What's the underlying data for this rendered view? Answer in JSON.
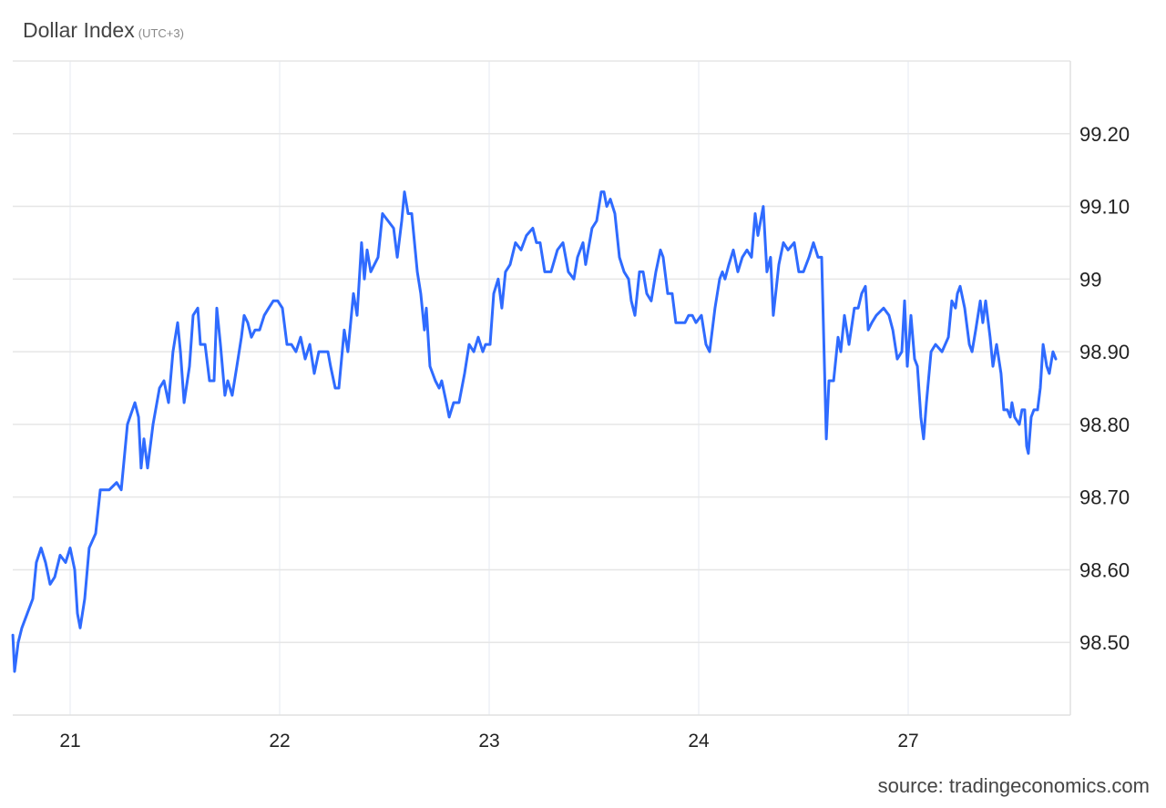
{
  "chart_data": {
    "type": "line",
    "title": "Dollar Index",
    "subtitle": "(UTC+3)",
    "source": "source: tradingeconomics.com",
    "line_color": "#2f6bff",
    "grid": true,
    "y_axis_position": "right",
    "ylim": [
      98.4,
      99.3
    ],
    "yticks": [
      {
        "value": 99.2,
        "label": "99.20"
      },
      {
        "value": 99.1,
        "label": "99.10"
      },
      {
        "value": 99.0,
        "label": "99"
      },
      {
        "value": 98.9,
        "label": "98.90"
      },
      {
        "value": 98.8,
        "label": "98.80"
      },
      {
        "value": 98.7,
        "label": "98.70"
      },
      {
        "value": 98.6,
        "label": "98.60"
      },
      {
        "value": 98.5,
        "label": "98.50"
      }
    ],
    "xticks": [
      "21",
      "22",
      "23",
      "24",
      "27"
    ],
    "xlim": [
      "20 17:26",
      "27 18:34"
    ],
    "x": [
      "20 17:26",
      "20 17:38",
      "20 18:03",
      "20 18:28",
      "20 19:06",
      "20 19:43",
      "20 20:08",
      "20 20:40",
      "20 21:11",
      "20 21:42",
      "20 22:14",
      "20 22:51",
      "20 23:29",
      "21 00:00",
      "21 00:31",
      "21 00:50",
      "21 01:09",
      "21 01:40",
      "21 02:11",
      "21 02:55",
      "21 03:27",
      "21 03:58",
      "21 04:29",
      "21 05:19",
      "21 05:51",
      "21 06:34",
      "21 07:25",
      "21 07:50",
      "21 08:08",
      "21 08:27",
      "21 08:52",
      "21 09:30",
      "21 10:14",
      "21 10:45",
      "21 11:16",
      "21 11:47",
      "21 12:19",
      "21 12:38",
      "21 13:03",
      "21 13:40",
      "21 14:05",
      "21 14:37",
      "21 14:55",
      "21 15:27",
      "21 15:58",
      "21 16:29",
      "21 16:48",
      "21 17:13",
      "21 17:44",
      "21 18:03",
      "21 18:34",
      "21 19:06",
      "21 19:37",
      "21 19:56",
      "21 20:21",
      "21 20:46",
      "21 21:11",
      "21 21:42",
      "21 22:14",
      "21 22:45",
      "21 23:16",
      "21 23:47",
      "22 00:19",
      "22 00:50",
      "22 01:21",
      "22 01:52",
      "22 02:24",
      "22 02:55",
      "22 03:27",
      "22 03:58",
      "22 04:29",
      "22 05:00",
      "22 05:32",
      "22 05:50",
      "22 06:22",
      "22 06:47",
      "22 07:24",
      "22 07:49",
      "22 08:27",
      "22 08:52",
      "22 09:23",
      "22 09:42",
      "22 10:01",
      "22 10:26",
      "22 11:16",
      "22 11:47",
      "22 12:25",
      "22 13:03",
      "22 13:28",
      "22 13:59",
      "22 14:18",
      "22 14:43",
      "22 15:08",
      "22 15:46",
      "22 16:10",
      "22 16:35",
      "22 16:48",
      "22 17:13",
      "22 17:50",
      "22 18:16",
      "22 18:34",
      "22 19:06",
      "22 19:25",
      "22 19:56",
      "22 20:33",
      "22 21:11",
      "22 21:42",
      "22 22:14",
      "22 22:45",
      "22 23:16",
      "22 23:35",
      "23 00:06",
      "23 00:31",
      "23 01:02",
      "23 01:27",
      "23 01:52",
      "23 02:24",
      "23 03:01",
      "23 03:39",
      "23 04:16",
      "23 05:00",
      "23 05:25",
      "23 05:50",
      "23 06:22",
      "23 07:05",
      "23 07:49",
      "23 08:27",
      "23 09:04",
      "23 09:42",
      "23 10:07",
      "23 10:45",
      "23 11:03",
      "23 11:47",
      "23 12:19",
      "23 12:50",
      "23 13:09",
      "23 13:28",
      "23 13:53",
      "23 14:24",
      "23 14:55",
      "23 15:27",
      "23 15:58",
      "23 16:17",
      "23 16:42",
      "23 17:13",
      "23 17:38",
      "23 18:03",
      "23 18:34",
      "23 19:06",
      "23 19:37",
      "23 19:56",
      "23 20:27",
      "23 20:58",
      "23 21:23",
      "23 22:01",
      "23 22:26",
      "23 22:51",
      "23 23:16",
      "23 23:41",
      "24 00:19",
      "24 00:50",
      "24 01:15",
      "24 01:52",
      "24 02:24",
      "24 02:43",
      "24 03:01",
      "24 03:27",
      "24 03:58",
      "24 04:29",
      "24 05:00",
      "24 05:32",
      "24 06:03",
      "24 06:28",
      "24 06:47",
      "24 07:24",
      "24 07:49",
      "24 08:14",
      "24 08:33",
      "24 09:11",
      "24 09:42",
      "24 10:14",
      "24 10:57",
      "24 11:28",
      "24 12:00",
      "24 12:38",
      "24 13:09",
      "24 13:40",
      "24 14:05",
      "24 14:37",
      "24 14:55",
      "24 15:27",
      "24 15:58",
      "24 16:17",
      "24 16:42",
      "24 17:13",
      "24 17:50",
      "24 18:16",
      "24 18:40",
      "24 19:06",
      "24 19:25",
      "24 19:50",
      "24 20:21",
      "24 21:11",
      "24 21:48",
      "24 22:14",
      "24 22:45",
      "24 23:16",
      "24 23:35",
      "24 23:54",
      "27 00:19",
      "27 00:44",
      "27 01:03",
      "27 01:27",
      "27 01:46",
      "27 02:05",
      "27 02:37",
      "27 03:08",
      "27 03:52",
      "27 04:36",
      "27 05:00",
      "27 05:25",
      "27 05:38",
      "27 05:57",
      "27 06:28",
      "27 07:00",
      "27 07:19",
      "27 07:44",
      "27 08:15",
      "27 08:33",
      "27 08:52",
      "27 09:23",
      "27 09:42",
      "27 10:07",
      "27 10:38",
      "27 10:57",
      "27 11:22",
      "27 11:41",
      "27 11:53",
      "27 12:12",
      "27 12:44",
      "27 13:02",
      "27 13:21",
      "27 13:34",
      "27 13:46",
      "27 14:05",
      "27 14:24",
      "27 14:49",
      "27 15:08",
      "27 15:27",
      "27 15:52",
      "27 16:10",
      "27 16:35",
      "27 16:54"
    ],
    "series": [
      {
        "values": [
          98.51,
          98.46,
          98.5,
          98.52,
          98.54,
          98.56,
          98.61,
          98.63,
          98.61,
          98.58,
          98.59,
          98.62,
          98.61,
          98.63,
          98.6,
          98.54,
          98.52,
          98.56,
          98.63,
          98.65,
          98.71,
          98.71,
          98.71,
          98.72,
          98.71,
          98.8,
          98.83,
          98.81,
          98.74,
          98.78,
          98.74,
          98.8,
          98.85,
          98.86,
          98.83,
          98.9,
          98.94,
          98.9,
          98.83,
          98.88,
          98.95,
          98.96,
          98.91,
          98.91,
          98.86,
          98.86,
          98.96,
          98.91,
          98.84,
          98.86,
          98.84,
          98.88,
          98.92,
          98.95,
          98.94,
          98.92,
          98.93,
          98.93,
          98.95,
          98.96,
          98.97,
          98.97,
          98.96,
          98.91,
          98.91,
          98.9,
          98.92,
          98.89,
          98.91,
          98.87,
          98.9,
          98.9,
          98.9,
          98.88,
          98.85,
          98.85,
          98.93,
          98.9,
          98.98,
          98.95,
          99.05,
          99.0,
          99.04,
          99.01,
          99.03,
          99.09,
          99.08,
          99.07,
          99.03,
          99.08,
          99.12,
          99.09,
          99.09,
          99.01,
          98.98,
          98.93,
          98.96,
          98.88,
          98.86,
          98.85,
          98.86,
          98.83,
          98.81,
          98.83,
          98.83,
          98.87,
          98.91,
          98.9,
          98.92,
          98.9,
          98.91,
          98.91,
          98.98,
          99.0,
          98.96,
          99.01,
          99.02,
          99.05,
          99.04,
          99.06,
          99.07,
          99.05,
          99.05,
          99.01,
          99.01,
          99.04,
          99.05,
          99.01,
          99.0,
          99.03,
          99.05,
          99.02,
          99.07,
          99.08,
          99.12,
          99.12,
          99.1,
          99.11,
          99.09,
          99.03,
          99.01,
          99.0,
          98.97,
          98.95,
          99.01,
          99.01,
          98.98,
          98.97,
          99.01,
          99.04,
          99.03,
          98.98,
          98.98,
          98.94,
          98.94,
          98.94,
          98.95,
          98.95,
          98.94,
          98.95,
          98.91,
          98.9,
          98.96,
          99.0,
          99.01,
          99.0,
          99.02,
          99.04,
          99.01,
          99.03,
          99.04,
          99.03,
          99.09,
          99.06,
          99.1,
          99.01,
          99.03,
          98.95,
          99.02,
          99.05,
          99.04,
          99.05,
          99.01,
          99.01,
          99.03,
          99.05,
          99.03,
          99.03,
          98.78,
          98.86,
          98.86,
          98.92,
          98.9,
          98.95,
          98.91,
          98.96,
          98.96,
          98.98,
          98.99,
          98.93,
          98.94,
          98.95,
          98.96,
          98.95,
          98.93,
          98.89,
          98.9,
          98.97,
          98.88,
          98.95,
          98.89,
          98.88,
          98.81,
          98.78,
          98.83,
          98.9,
          98.91,
          98.9,
          98.92,
          98.97,
          98.96,
          98.98,
          98.99,
          98.96,
          98.91,
          98.9,
          98.93,
          98.97,
          98.94,
          98.97,
          98.92,
          98.88,
          98.91,
          98.87,
          98.82,
          98.82,
          98.81,
          98.83,
          98.81,
          98.8,
          98.82,
          98.82,
          98.77,
          98.76,
          98.81,
          98.82,
          98.82,
          98.85,
          98.91,
          98.88,
          98.87,
          98.9,
          98.89
        ]
      }
    ]
  }
}
